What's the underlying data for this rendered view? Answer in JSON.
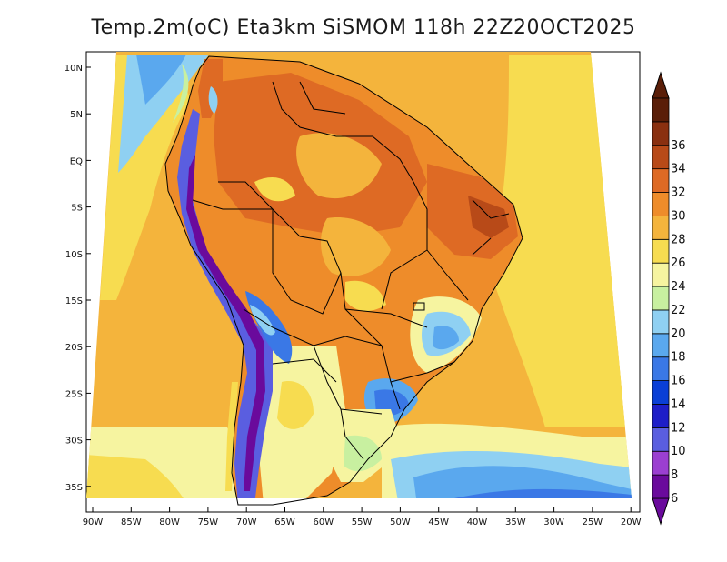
{
  "title": "Temp.2m(oC) Eta3km SiSMOM 118h 22Z20OCT2025",
  "map": {
    "lat_ticks": [
      "10N",
      "5N",
      "EQ",
      "5S",
      "10S",
      "15S",
      "20S",
      "25S",
      "30S",
      "35S"
    ],
    "lon_ticks": [
      "90W",
      "85W",
      "80W",
      "75W",
      "70W",
      "65W",
      "60W",
      "55W",
      "50W",
      "45W",
      "40W",
      "35W",
      "30W",
      "25W",
      "20W"
    ]
  },
  "colorbar": {
    "labels": [
      "6",
      "8",
      "10",
      "12",
      "14",
      "16",
      "18",
      "20",
      "22",
      "24",
      "26",
      "28",
      "30",
      "32",
      "34",
      "36"
    ],
    "colors": [
      "#6a0a9c",
      "#9b3fd1",
      "#5a5ee0",
      "#1e1ec8",
      "#0a3fd6",
      "#3a78e6",
      "#5aa8ee",
      "#8fd0f2",
      "#c8f0a0",
      "#f6f4a0",
      "#f7dc50",
      "#f4b43c",
      "#ee8c2a",
      "#de6a24",
      "#b84a18",
      "#8a3010",
      "#5a1e08"
    ]
  }
}
